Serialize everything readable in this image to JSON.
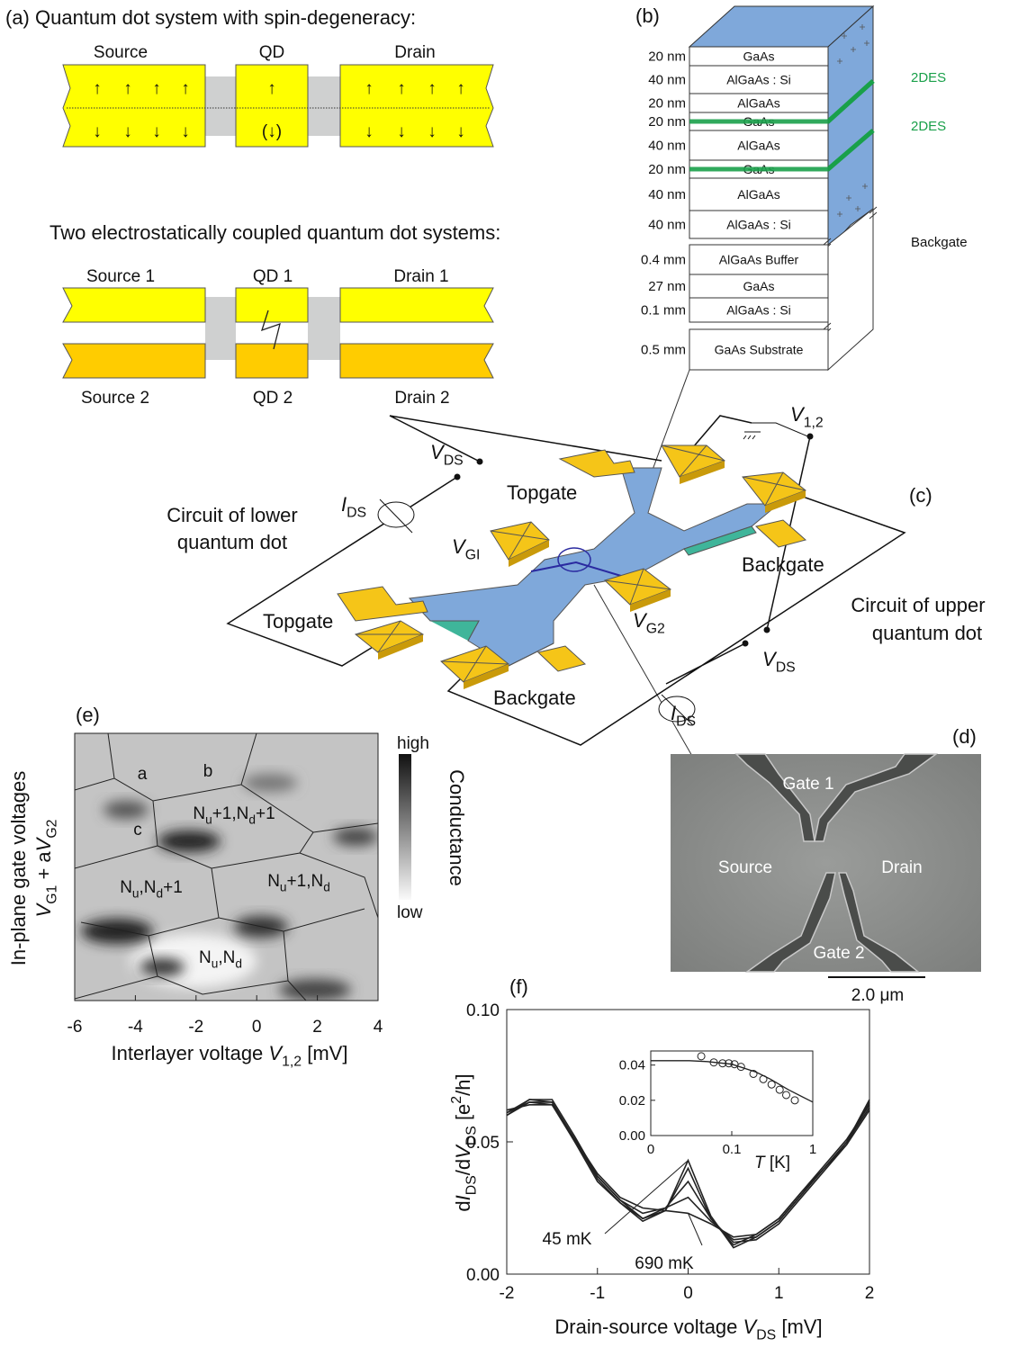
{
  "panel_a": {
    "title": "(a) Quantum dot system with spin-degeneracy:",
    "source": "Source",
    "qd": "QD",
    "drain": "Drain",
    "up": "↑",
    "down": "↓",
    "qd_down": "(↓)",
    "subtitle": "Two electrostatically coupled quantum dot systems:",
    "source_1": "Source 1",
    "qd_1": "QD 1",
    "drain_1": "Drain 1",
    "source_2": "Source 2",
    "qd_2": "QD 2",
    "drain_2": "Drain 2"
  },
  "panel_b": {
    "label": "(b)",
    "layers": [
      {
        "thickness": "20 nm",
        "material": "GaAs"
      },
      {
        "thickness": "40 nm",
        "material": "AlGaAs : Si"
      },
      {
        "thickness": "20 nm",
        "material": "AlGaAs"
      },
      {
        "thickness": "20 nm",
        "material": "GaAs"
      },
      {
        "thickness": "40 nm",
        "material": "AlGaAs"
      },
      {
        "thickness": "20 nm",
        "material": "GaAs"
      },
      {
        "thickness": "40 nm",
        "material": "AlGaAs"
      },
      {
        "thickness": "40 nm",
        "material": "AlGaAs : Si"
      },
      {
        "thickness": "0.4 mm",
        "material": "AlGaAs Buffer"
      },
      {
        "thickness": "27 nm",
        "material": "GaAs"
      },
      {
        "thickness": "0.1 mm",
        "material": "AlGaAs : Si"
      },
      {
        "thickness": "0.5 mm",
        "material": "GaAs Substrate"
      }
    ],
    "channel": "2DES",
    "backgate": "Backgate"
  },
  "panel_c": {
    "label": "(c)",
    "v_ds": [
      {
        "var": "V"
      },
      {
        "sub": "DS"
      }
    ],
    "i_ds": [
      {
        "var": "I"
      },
      {
        "sub": "DS"
      }
    ],
    "v_12": [
      {
        "var": "V"
      },
      {
        "sub": "1,2"
      }
    ],
    "v_g1": [
      {
        "var": "V"
      },
      {
        "sub": "GI"
      }
    ],
    "v_g2": [
      {
        "var": "V"
      },
      {
        "sub": "G2"
      }
    ],
    "topgate": "Topgate",
    "backgate": "Backgate",
    "lower_circuit": [
      "Circuit of lower",
      "quantum dot"
    ],
    "upper_circuit": [
      "Circuit of upper",
      "quantum dot"
    ]
  },
  "panel_d": {
    "label": "(d)",
    "gate_1": "Gate 1",
    "gate_2": "Gate 2",
    "source": "Source",
    "drain": "Drain",
    "scale": "2.0 μm"
  },
  "chart_data": [
    {
      "type": "heatmap",
      "label": "(e)",
      "xlabel": [
        {
          "text": "Interlayer voltage "
        },
        {
          "var": "V"
        },
        {
          "sub": "1,2"
        },
        {
          "text": " [mV]"
        }
      ],
      "ylabel": {
        "line1": "In-plane gate voltages",
        "line2": [
          {
            "var": "V"
          },
          {
            "sub": "G1"
          },
          {
            "text": " + a"
          },
          {
            "var": "V"
          },
          {
            "sub": "G2"
          }
        ]
      },
      "xlim": [
        -6,
        4
      ],
      "xticks": [
        -6,
        -4,
        -2,
        0,
        2,
        4
      ],
      "colorbar": {
        "title": "Conductance",
        "high": "high",
        "low": "low"
      },
      "regions": [
        [
          {
            "text": "a"
          }
        ],
        [
          {
            "text": "b"
          }
        ],
        [
          {
            "text": "c"
          }
        ],
        [
          {
            "text": "N"
          },
          {
            "sub": "u"
          },
          {
            "text": "+1,N"
          },
          {
            "sub": "d"
          },
          {
            "text": "+1"
          }
        ],
        [
          {
            "text": "N"
          },
          {
            "sub": "u"
          },
          {
            "text": ",N"
          },
          {
            "sub": "d"
          },
          {
            "text": "+1"
          }
        ],
        [
          {
            "text": "N"
          },
          {
            "sub": "u"
          },
          {
            "text": "+1,N"
          },
          {
            "sub": "d"
          }
        ],
        [
          {
            "text": "N"
          },
          {
            "sub": "u"
          },
          {
            "text": ",N"
          },
          {
            "sub": "d"
          }
        ]
      ]
    },
    {
      "type": "line",
      "label": "(f)",
      "xlabel": [
        {
          "text": "Drain-source voltage "
        },
        {
          "var": "V"
        },
        {
          "sub": "DS"
        },
        {
          "text": " [mV]"
        }
      ],
      "ylabel": [
        {
          "text": "d"
        },
        {
          "var": "I"
        },
        {
          "sub": "DS"
        },
        {
          "text": "/d"
        },
        {
          "var": "V"
        },
        {
          "sub": "DS"
        },
        {
          "text": " [e"
        },
        {
          "sup": "2"
        },
        {
          "text": "/h]"
        }
      ],
      "xlim": [
        -2,
        2
      ],
      "ylim": [
        0,
        0.1
      ],
      "xticks": [
        -2,
        -1,
        0,
        1,
        2
      ],
      "yticks": [
        {
          "value": 0,
          "label": "0.00"
        },
        0.05,
        {
          "value": 0.1,
          "label": "0.10"
        }
      ],
      "x": [
        -2,
        -1.75,
        -1.5,
        -1.25,
        -1,
        -0.75,
        -0.5,
        -0.25,
        0,
        0.25,
        0.5,
        0.75,
        1,
        1.25,
        1.5,
        1.75,
        2
      ],
      "series": [
        {
          "name": "45 mK",
          "color": "#222222",
          "values": [
            0.061,
            0.066,
            0.066,
            0.052,
            0.037,
            0.028,
            0.021,
            0.024,
            0.043,
            0.022,
            0.01,
            0.014,
            0.02,
            0.03,
            0.04,
            0.05,
            0.066
          ]
        },
        {
          "color": "#222222",
          "values": [
            0.06,
            0.065,
            0.065,
            0.051,
            0.036,
            0.027,
            0.02,
            0.024,
            0.04,
            0.021,
            0.011,
            0.015,
            0.021,
            0.031,
            0.041,
            0.051,
            0.064
          ]
        },
        {
          "color": "#222222",
          "values": [
            0.062,
            0.064,
            0.064,
            0.05,
            0.035,
            0.027,
            0.021,
            0.025,
            0.035,
            0.021,
            0.012,
            0.013,
            0.019,
            0.029,
            0.039,
            0.049,
            0.065
          ]
        },
        {
          "color": "#222222",
          "values": [
            0.06,
            0.066,
            0.065,
            0.05,
            0.037,
            0.028,
            0.023,
            0.025,
            0.029,
            0.02,
            0.013,
            0.014,
            0.02,
            0.03,
            0.04,
            0.05,
            0.063
          ]
        },
        {
          "name": "690 mK",
          "color": "#222222",
          "values": [
            0.061,
            0.065,
            0.064,
            0.051,
            0.038,
            0.029,
            0.025,
            0.024,
            0.023,
            0.019,
            0.014,
            0.015,
            0.021,
            0.031,
            0.04,
            0.049,
            0.062
          ]
        }
      ]
    },
    {
      "type": "scatter",
      "xlabel": [
        {
          "var": "T"
        },
        {
          "text": " [K]"
        }
      ],
      "xlog": true,
      "xlim": [
        0.01,
        1
      ],
      "xticks": [
        {
          "value": 0.01,
          "label": "0"
        },
        0.1,
        1
      ],
      "ylim": [
        0,
        0.048
      ],
      "yticks": [
        {
          "value": 0,
          "label": "0.00"
        },
        0.02,
        0.04
      ],
      "x": [
        0.042,
        0.06,
        0.077,
        0.092,
        0.108,
        0.13,
        0.185,
        0.245,
        0.31,
        0.39,
        0.47,
        0.6
      ],
      "values": [
        0.045,
        0.0415,
        0.041,
        0.041,
        0.0405,
        0.039,
        0.035,
        0.032,
        0.029,
        0.026,
        0.023,
        0.02
      ],
      "fit": {
        "x": [
          0.01,
          0.03,
          0.05,
          0.1,
          0.2,
          0.3,
          0.5,
          1
        ],
        "values": [
          0.0425,
          0.0425,
          0.042,
          0.0405,
          0.036,
          0.032,
          0.026,
          0.019
        ]
      }
    }
  ]
}
